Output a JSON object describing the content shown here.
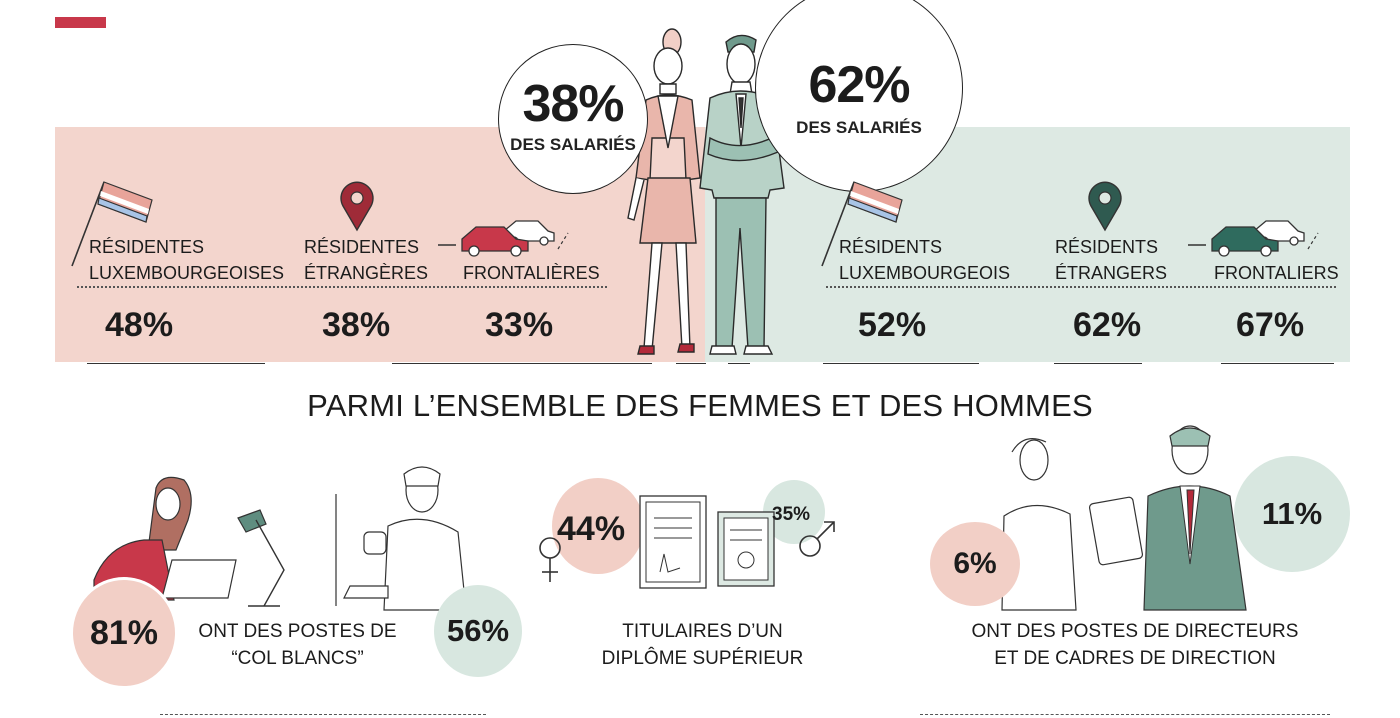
{
  "colors": {
    "accent": "#c8384a",
    "women_panel": "#f3d5cd",
    "men_panel": "#dde9e3",
    "pink_bubble": "#f2cfc6",
    "green_bubble": "#d8e7e0"
  },
  "women": {
    "pct": "38%",
    "caption": "DES SALARIÉS",
    "categories": [
      {
        "line1": "RÉSIDENTES",
        "line2": "LUXEMBOURGEOISES",
        "value": "48%",
        "icon": "flag-icon"
      },
      {
        "line1": "RÉSIDENTES",
        "line2": "ÉTRANGÈRES",
        "value": "38%",
        "icon": "location-pin-icon"
      },
      {
        "line1": "",
        "line2": "FRONTALIÈRES",
        "value": "33%",
        "icon": "cars-icon"
      }
    ]
  },
  "men": {
    "pct": "62%",
    "caption": "DES SALARIÉS",
    "categories": [
      {
        "line1": "RÉSIDENTS",
        "line2": "LUXEMBOURGEOIS",
        "value": "52%",
        "icon": "flag-icon"
      },
      {
        "line1": "RÉSIDENTS",
        "line2": "ÉTRANGERS",
        "value": "62%",
        "icon": "location-pin-icon"
      },
      {
        "line1": "",
        "line2": "FRONTALIERS",
        "value": "67%",
        "icon": "cars-icon"
      }
    ]
  },
  "section_title": "PARMI L’ENSEMBLE DES FEMMES ET DES HOMMES",
  "stats": [
    {
      "women": "81%",
      "men": "56%",
      "line1": "ONT DES POSTES DE",
      "line2": "“COL BLANCS”"
    },
    {
      "women": "44%",
      "men": "35%",
      "line1": "TITULAIRES D’UN",
      "line2": "DIPLÔME SUPÉRIEUR"
    },
    {
      "women": "6%",
      "men": "11%",
      "line1": "ONT DES POSTES DE DIRECTEURS",
      "line2": "ET DE CADRES DE DIRECTION"
    }
  ]
}
